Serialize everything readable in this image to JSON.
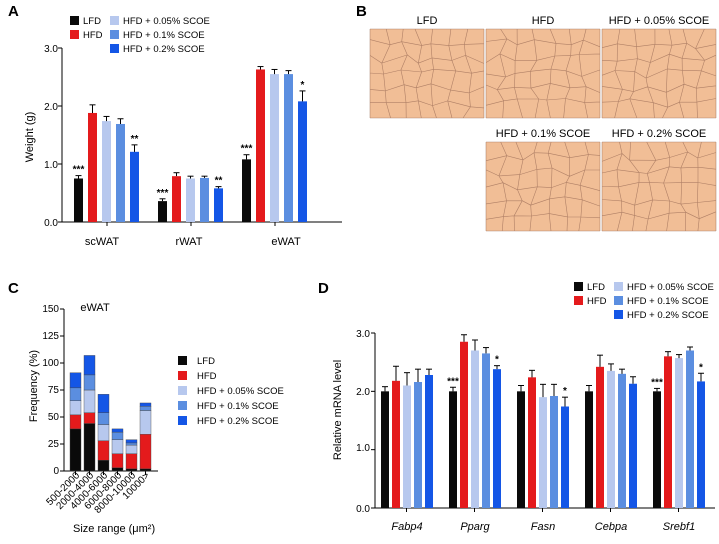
{
  "colors": {
    "LFD": "#0a0a0a",
    "HFD": "#e41a1c",
    "HFD + 0.05% SCOE": "#b7c8ee",
    "HFD + 0.1% SCOE": "#5b8ee0",
    "HFD + 0.2% SCOE": "#1456e6",
    "tissue": "#f1be96",
    "membrane": "#9a6b55"
  },
  "panel_letters": [
    "A",
    "B",
    "C",
    "D"
  ],
  "legend": [
    "LFD",
    "HFD",
    "HFD + 0.05% SCOE",
    "HFD + 0.1% SCOE",
    "HFD + 0.2% SCOE"
  ],
  "micrographs": {
    "labels": [
      "LFD",
      "HFD",
      "HFD + 0.05% SCOE",
      "HFD + 0.1% SCOE",
      "HFD + 0.2% SCOE"
    ]
  },
  "chart_data": [
    {
      "panel": "A",
      "type": "bar",
      "ylabel": "Weight (g)",
      "xlabel": "",
      "ylim": [
        0,
        3.0
      ],
      "yticks": [
        "0.0",
        "1.0",
        "2.0",
        "3.0"
      ],
      "categories": [
        "scWAT",
        "rWAT",
        "eWAT"
      ],
      "series": [
        {
          "name": "LFD",
          "values": [
            0.75,
            0.36,
            1.08
          ],
          "errors": [
            0.05,
            0.04,
            0.08
          ],
          "stars": [
            "***",
            "***",
            "***"
          ]
        },
        {
          "name": "HFD",
          "values": [
            1.88,
            0.79,
            2.63
          ],
          "errors": [
            0.14,
            0.06,
            0.05
          ],
          "stars": [
            "",
            "",
            ""
          ]
        },
        {
          "name": "HFD + 0.05% SCOE",
          "values": [
            1.74,
            0.75,
            2.55
          ],
          "errors": [
            0.08,
            0.04,
            0.08
          ],
          "stars": [
            "",
            "",
            ""
          ]
        },
        {
          "name": "HFD + 0.1% SCOE",
          "values": [
            1.69,
            0.76,
            2.55
          ],
          "errors": [
            0.09,
            0.03,
            0.06
          ],
          "stars": [
            "",
            "",
            ""
          ]
        },
        {
          "name": "HFD + 0.2% SCOE",
          "values": [
            1.21,
            0.58,
            2.08
          ],
          "errors": [
            0.12,
            0.03,
            0.18
          ],
          "stars": [
            "**",
            "**",
            "*"
          ]
        }
      ]
    },
    {
      "panel": "C",
      "type": "bar",
      "stacked": true,
      "title": "eWAT",
      "ylabel": "Frequency (%)",
      "xlabel": "Size range (μm²)",
      "ylim": [
        0,
        150
      ],
      "yticks": [
        "0",
        "25",
        "50",
        "75",
        "100",
        "125",
        "150"
      ],
      "categories": [
        "500-2000",
        "2000-4000",
        "4000-6000",
        "6000-8000",
        "8000-10000",
        "10000>"
      ],
      "series": [
        {
          "name": "LFD",
          "values": [
            39,
            44,
            10,
            3,
            2,
            2
          ]
        },
        {
          "name": "HFD",
          "values": [
            13,
            10,
            18,
            13,
            14,
            32
          ]
        },
        {
          "name": "HFD + 0.05% SCOE",
          "values": [
            13,
            21,
            15,
            13,
            8,
            22
          ]
        },
        {
          "name": "HFD + 0.1% SCOE",
          "values": [
            12,
            14,
            11,
            7,
            2,
            4
          ]
        },
        {
          "name": "HFD + 0.2% SCOE",
          "values": [
            14,
            18,
            17,
            3,
            3,
            3
          ]
        }
      ]
    },
    {
      "panel": "D",
      "type": "bar",
      "ylabel": "Relative mRNA level",
      "xlabel": "",
      "ylim": [
        0,
        3.0
      ],
      "yticks": [
        "0.0",
        "1.0",
        "2.0",
        "3.0"
      ],
      "categories": [
        "Fabp4",
        "Pparg",
        "Fasn",
        "Cebpa",
        "Srebf1"
      ],
      "series": [
        {
          "name": "LFD",
          "values": [
            2.0,
            2.0,
            2.0,
            2.0,
            2.0
          ],
          "errors": [
            0.08,
            0.07,
            0.1,
            0.1,
            0.05
          ],
          "stars": [
            "",
            "***",
            "",
            "",
            "***"
          ]
        },
        {
          "name": "HFD",
          "values": [
            2.18,
            2.85,
            2.24,
            2.42,
            2.6
          ],
          "errors": [
            0.25,
            0.12,
            0.12,
            0.2,
            0.08
          ],
          "stars": [
            "",
            "",
            "",
            "",
            ""
          ]
        },
        {
          "name": "HFD + 0.05% SCOE",
          "values": [
            2.1,
            2.7,
            1.9,
            2.35,
            2.57
          ],
          "errors": [
            0.22,
            0.18,
            0.22,
            0.12,
            0.06
          ],
          "stars": [
            "",
            "",
            "",
            "",
            ""
          ]
        },
        {
          "name": "HFD + 0.1% SCOE",
          "values": [
            2.16,
            2.65,
            1.92,
            2.3,
            2.7
          ],
          "errors": [
            0.22,
            0.1,
            0.2,
            0.08,
            0.06
          ],
          "stars": [
            "",
            "",
            "",
            "",
            ""
          ]
        },
        {
          "name": "HFD + 0.2% SCOE",
          "values": [
            2.28,
            2.38,
            1.74,
            2.13,
            2.17
          ],
          "errors": [
            0.1,
            0.06,
            0.16,
            0.12,
            0.14
          ],
          "stars": [
            "",
            "*",
            "*",
            "",
            "*"
          ]
        }
      ]
    }
  ]
}
